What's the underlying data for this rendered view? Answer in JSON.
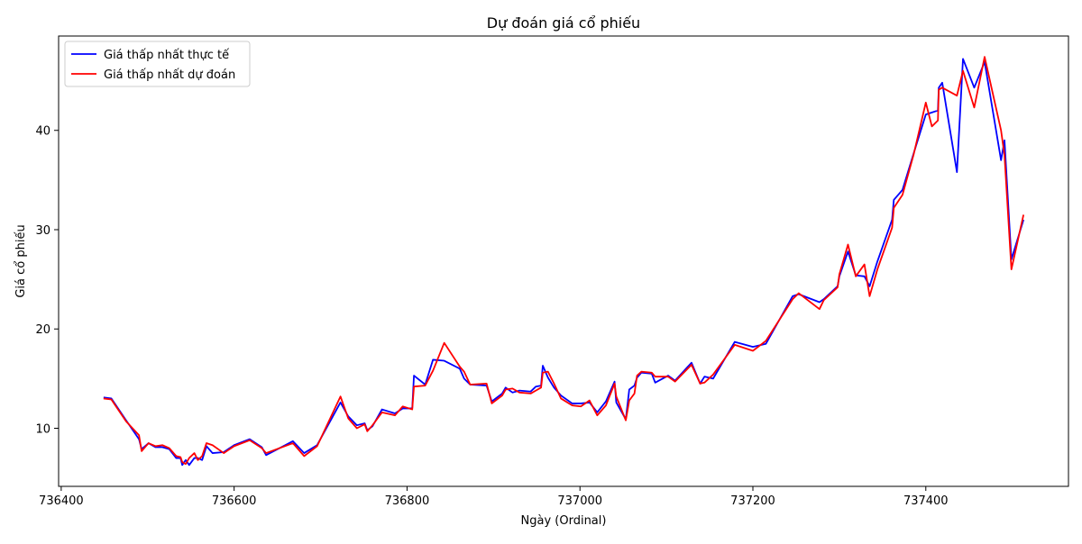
{
  "chart_data": {
    "type": "line",
    "title": "Dự đoán giá cổ phiếu",
    "x_label": "Ngày (Ordinal)",
    "y_label": "Giá cổ phiếu",
    "x": [
      736449,
      736458,
      736475,
      736490,
      736493,
      736501,
      736509,
      736517,
      736525,
      736533,
      736538,
      736540,
      736544,
      736548,
      736554,
      736558,
      736563,
      736568,
      736575,
      736588,
      736600,
      736618,
      736632,
      736637,
      736668,
      736681,
      736696,
      736723,
      736732,
      736742,
      736751,
      736754,
      736760,
      736771,
      736786,
      736795,
      736806,
      736808,
      736821,
      736830,
      736843,
      736861,
      736866,
      736873,
      736892,
      736898,
      736910,
      736914,
      736922,
      736930,
      736943,
      736949,
      736955,
      736957,
      736963,
      736970,
      736978,
      736991,
      737001,
      737011,
      737020,
      737030,
      737040,
      737042,
      737053,
      737057,
      737063,
      737066,
      737071,
      737083,
      737087,
      737102,
      737110,
      737129,
      737139,
      737144,
      737154,
      737179,
      737200,
      737215,
      737246,
      737253,
      737277,
      737282,
      737298,
      737300,
      737310,
      737319,
      737329,
      737335,
      737344,
      737361,
      737363,
      737373,
      737386,
      737400,
      737407,
      737414,
      737415,
      737419,
      737436,
      737443,
      737456,
      737468,
      737487,
      737491,
      737499,
      737513
    ],
    "series": [
      {
        "name": "Giá thấp nhất thực tế",
        "color": "#0000ff",
        "values": [
          13.1,
          13.0,
          10.8,
          8.9,
          7.9,
          8.5,
          8.1,
          8.1,
          7.9,
          7.0,
          7.0,
          6.3,
          6.8,
          6.3,
          7.0,
          7.0,
          6.8,
          8.2,
          7.5,
          7.6,
          8.3,
          8.9,
          8.1,
          7.3,
          8.7,
          7.5,
          8.3,
          12.6,
          11.2,
          10.3,
          10.5,
          9.8,
          10.2,
          11.9,
          11.5,
          12.0,
          12.0,
          15.3,
          14.4,
          16.9,
          16.8,
          16.0,
          15.0,
          14.4,
          14.3,
          12.7,
          13.5,
          14.1,
          13.6,
          13.8,
          13.7,
          14.2,
          14.3,
          16.3,
          15.1,
          14.1,
          13.3,
          12.5,
          12.5,
          12.6,
          11.6,
          12.7,
          14.7,
          12.6,
          10.9,
          13.9,
          14.3,
          15.1,
          15.6,
          15.5,
          14.6,
          15.3,
          14.8,
          16.6,
          14.5,
          15.2,
          15.0,
          18.7,
          18.2,
          18.5,
          23.3,
          23.5,
          22.7,
          23.0,
          24.3,
          25.3,
          27.8,
          25.4,
          25.3,
          24.3,
          26.8,
          31.0,
          33.0,
          34.0,
          37.7,
          41.6,
          41.8,
          42.0,
          44.3,
          44.8,
          35.8,
          47.2,
          44.3,
          46.9,
          37.0,
          39.0,
          27.0,
          31.0
        ]
      },
      {
        "name": "Giá thấp nhất dự đoán",
        "color": "#ff0000",
        "values": [
          13.0,
          12.9,
          10.7,
          9.3,
          7.7,
          8.5,
          8.2,
          8.3,
          8.0,
          7.2,
          7.1,
          6.6,
          6.4,
          7.0,
          7.5,
          6.8,
          7.2,
          8.5,
          8.3,
          7.5,
          8.2,
          8.8,
          8.0,
          7.5,
          8.5,
          7.2,
          8.2,
          13.2,
          11.0,
          10.0,
          10.4,
          9.7,
          10.3,
          11.6,
          11.3,
          12.2,
          11.9,
          14.2,
          14.3,
          15.8,
          18.6,
          16.2,
          15.7,
          14.4,
          14.5,
          12.5,
          13.3,
          13.9,
          14.0,
          13.6,
          13.5,
          13.8,
          14.1,
          15.6,
          15.7,
          14.5,
          13.0,
          12.3,
          12.2,
          12.8,
          11.3,
          12.3,
          14.5,
          13.2,
          10.8,
          12.8,
          13.5,
          15.3,
          15.7,
          15.6,
          15.2,
          15.2,
          14.7,
          16.4,
          14.5,
          14.6,
          15.4,
          18.4,
          17.8,
          18.8,
          23.0,
          23.6,
          22.0,
          22.9,
          24.2,
          25.5,
          28.5,
          25.3,
          26.5,
          23.3,
          26.0,
          30.2,
          32.2,
          33.5,
          37.6,
          42.8,
          40.4,
          41.0,
          44.1,
          44.3,
          43.5,
          46.0,
          42.3,
          47.4,
          40.0,
          37.5,
          26.0,
          31.5
        ]
      }
    ],
    "xlim": [
      736397,
      737565
    ],
    "ylim": [
      4.15,
      49.5
    ],
    "xticks": [
      736400,
      736600,
      736800,
      737000,
      737200,
      737400
    ],
    "yticks": [
      10,
      20,
      30,
      40
    ],
    "legend": "upper left"
  }
}
